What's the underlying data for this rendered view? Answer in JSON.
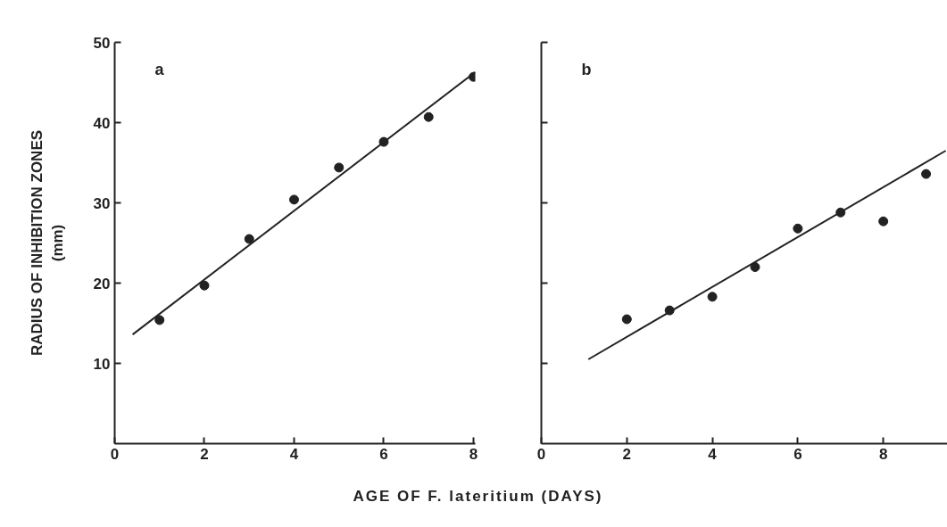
{
  "chart_data": [
    {
      "type": "scatter",
      "annotations": [
        "a"
      ],
      "xlabel": "AGE OF F. lateritium (DAYS)",
      "ylabel": "RADIUS OF INHIBITION ZONES\n(mm)",
      "xlim": [
        0,
        8.04
      ],
      "ylim": [
        0,
        50
      ],
      "xticks": [
        0,
        2,
        4,
        6,
        8
      ],
      "yticks": [
        10,
        20,
        30,
        40,
        50
      ],
      "marker": "circle",
      "grid": false,
      "series": [
        {
          "color": "#222222",
          "x": [
            1,
            2,
            3,
            4,
            5,
            6,
            7,
            8
          ],
          "values": [
            15.4,
            19.7,
            25.5,
            30.4,
            34.4,
            37.6,
            40.7,
            45.7
          ]
        },
        {
          "type": "line",
          "color": "#222222",
          "marker": "none",
          "x": [
            0.4,
            8.04
          ],
          "values": [
            13.6,
            46.3
          ]
        }
      ]
    },
    {
      "type": "scatter",
      "annotations": [
        "b"
      ],
      "tick_labels": "x",
      "xlim": [
        0,
        9.5
      ],
      "ylim": [
        0,
        50
      ],
      "xticks": [
        0,
        2,
        4,
        6,
        8
      ],
      "yticks": [
        {
          "value": 10,
          "label": null
        },
        {
          "value": 20,
          "label": null
        },
        {
          "value": 30,
          "label": null
        },
        {
          "value": 40,
          "label": null
        },
        {
          "value": 50,
          "label": null
        }
      ],
      "marker": "circle",
      "grid": false,
      "series": [
        {
          "color": "#222222",
          "x": [
            2,
            3,
            4,
            5,
            6,
            7,
            8,
            9
          ],
          "values": [
            15.5,
            16.6,
            18.3,
            22.0,
            26.8,
            28.8,
            27.7,
            33.6
          ]
        },
        {
          "type": "line",
          "color": "#222222",
          "marker": "none",
          "x": [
            1.1,
            9.46
          ],
          "values": [
            10.5,
            36.5
          ]
        }
      ]
    }
  ]
}
